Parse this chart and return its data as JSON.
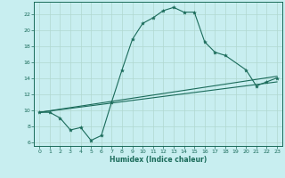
{
  "xlabel": "Humidex (Indice chaleur)",
  "bg_color": "#c8eef0",
  "line_color": "#1a6b5a",
  "grid_color": "#b0d8d0",
  "xlim": [
    -0.5,
    23.5
  ],
  "ylim": [
    5.5,
    23.5
  ],
  "yticks": [
    6,
    8,
    10,
    12,
    14,
    16,
    18,
    20,
    22
  ],
  "xticks": [
    0,
    1,
    2,
    3,
    4,
    5,
    6,
    7,
    8,
    9,
    10,
    11,
    12,
    13,
    14,
    15,
    16,
    17,
    18,
    19,
    20,
    21,
    22,
    23
  ],
  "series1_x": [
    0,
    1,
    2,
    3,
    4,
    5,
    6,
    7,
    8,
    9,
    10,
    11,
    12,
    13,
    14,
    15,
    16,
    17,
    18,
    20,
    21,
    22,
    23
  ],
  "series1_y": [
    9.7,
    9.7,
    9.0,
    7.5,
    7.8,
    6.2,
    6.8,
    11.0,
    15.0,
    18.8,
    20.8,
    21.5,
    22.4,
    22.8,
    22.2,
    22.2,
    18.5,
    17.2,
    16.8,
    15.0,
    13.0,
    13.5,
    14.0
  ],
  "series2_x": [
    0,
    23
  ],
  "series2_y": [
    9.7,
    14.2
  ],
  "series3_x": [
    0,
    23
  ],
  "series3_y": [
    9.7,
    13.5
  ]
}
